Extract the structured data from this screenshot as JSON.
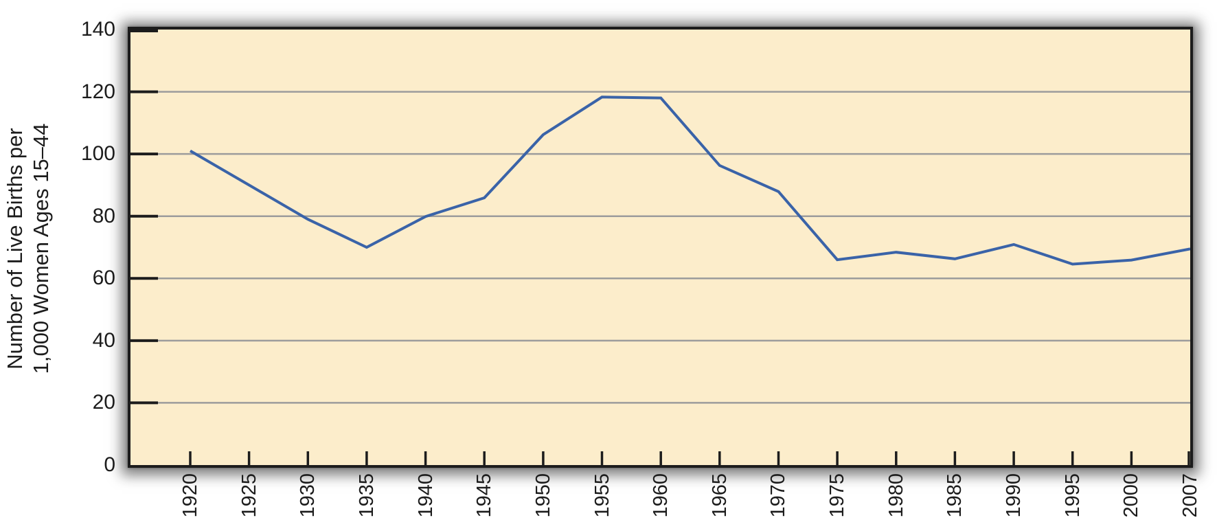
{
  "y_axis": {
    "title_line1": "Number of Live Births per",
    "title_line2": "1,000 Women Ages 15–44",
    "tick_labels": [
      "140",
      "120",
      "100",
      "80",
      "60",
      "40",
      "20",
      "0"
    ]
  },
  "x_axis": {
    "tick_labels": [
      "1920",
      "1925",
      "1930",
      "1935",
      "1940",
      "1945",
      "1950",
      "1955",
      "1960",
      "1965",
      "1970",
      "1975",
      "1980",
      "1985",
      "1990",
      "1995",
      "2000",
      "2007"
    ]
  },
  "chart_data": {
    "type": "line",
    "title": "",
    "xlabel": "",
    "ylabel": "Number of Live Births per 1,000 Women Ages 15–44",
    "categories": [
      "1920",
      "1925",
      "1930",
      "1935",
      "1940",
      "1945",
      "1950",
      "1955",
      "1960",
      "1965",
      "1970",
      "1975",
      "1980",
      "1985",
      "1990",
      "1995",
      "2000",
      "2007"
    ],
    "values": [
      101,
      90,
      79,
      70,
      79.9,
      85.9,
      106.2,
      118.3,
      118.0,
      96.3,
      87.9,
      66.0,
      68.4,
      66.3,
      70.9,
      64.6,
      65.9,
      69.5
    ],
    "ylim": [
      0,
      140
    ],
    "y_ticks": [
      0,
      20,
      40,
      60,
      80,
      100,
      120,
      140
    ],
    "grid": true,
    "legend": false,
    "colors": {
      "line": "#3A63A8",
      "plot_background": "#FCEDCB",
      "gridline": "#9C9C9C",
      "axis": "#1C1C1C",
      "text": "#1C1C1C",
      "page_background": "#FFFFFF"
    }
  }
}
